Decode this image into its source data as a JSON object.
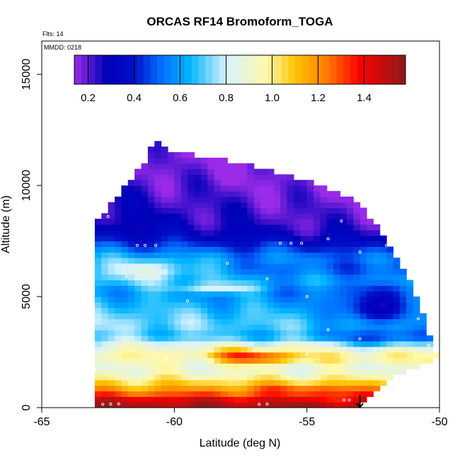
{
  "chart_data": {
    "type": "heatmap",
    "title": "ORCAS RF14 Bromoform_TOGA",
    "annotations": {
      "flights": "Flts: 14",
      "mmdd": "MMDD: 0218"
    },
    "xlabel": "Latitude (deg N)",
    "ylabel": "Altitude (m)",
    "xlim": [
      -65,
      -50
    ],
    "ylim": [
      0,
      16500
    ],
    "x_ticks": [
      -65,
      -60,
      -55,
      -50
    ],
    "x_tick_labels": [
      "-65",
      "-60",
      "-55",
      "-50"
    ],
    "y_ticks": [
      0,
      5000,
      10000,
      15000
    ],
    "y_tick_labels": [
      "0",
      "5000",
      "10000",
      "15000"
    ],
    "colorbar": {
      "range": [
        0.14,
        1.58
      ],
      "ticks": [
        0.2,
        0.4,
        0.6,
        0.8,
        1.0,
        1.2,
        1.4
      ],
      "tick_labels": [
        "0.2",
        "0.4",
        "0.6",
        "0.8",
        "1.0",
        "1.2",
        "1.4"
      ],
      "color_stops": [
        {
          "value": 0.14,
          "color": "#9a2be8"
        },
        {
          "value": 0.28,
          "color": "#0000b8"
        },
        {
          "value": 0.4,
          "color": "#0010c8"
        },
        {
          "value": 0.52,
          "color": "#0070ff"
        },
        {
          "value": 0.64,
          "color": "#00b4ff"
        },
        {
          "value": 0.8,
          "color": "#d6f2ff"
        },
        {
          "value": 0.98,
          "color": "#fff8a8"
        },
        {
          "value": 1.1,
          "color": "#ffc400"
        },
        {
          "value": 1.24,
          "color": "#ff7800"
        },
        {
          "value": 1.38,
          "color": "#ff0000"
        },
        {
          "value": 1.58,
          "color": "#8c1a1a"
        }
      ]
    },
    "field_layers": [
      {
        "alt": 250,
        "value": 1.52
      },
      {
        "alt": 750,
        "value": 1.2
      },
      {
        "alt": 1250,
        "value": 1.02
      },
      {
        "alt": 1750,
        "value": 0.86
      },
      {
        "alt": 2250,
        "value": 1.0
      },
      {
        "alt": 2750,
        "value": 0.88
      },
      {
        "alt": 3250,
        "value": 0.7
      },
      {
        "alt": 3750,
        "value": 0.76
      },
      {
        "alt": 4250,
        "value": 0.72
      },
      {
        "alt": 4750,
        "value": 0.66
      },
      {
        "alt": 5250,
        "value": 0.6
      },
      {
        "alt": 5750,
        "value": 0.68
      },
      {
        "alt": 6250,
        "value": 0.58
      },
      {
        "alt": 6750,
        "value": 0.62
      },
      {
        "alt": 7250,
        "value": 0.5
      },
      {
        "alt": 7750,
        "value": 0.36
      },
      {
        "alt": 8250,
        "value": 0.3
      },
      {
        "alt": 8750,
        "value": 0.28
      },
      {
        "alt": 9250,
        "value": 0.26
      },
      {
        "alt": 9750,
        "value": 0.24
      },
      {
        "alt": 10250,
        "value": 0.22
      },
      {
        "alt": 10750,
        "value": 0.2
      },
      {
        "alt": 11250,
        "value": 0.19
      },
      {
        "alt": 11750,
        "value": 0.18
      },
      {
        "alt": 12250,
        "value": 0.17
      }
    ],
    "field_extent": {
      "top_envelope": [
        {
          "lat": -62.8,
          "alt": 8500
        },
        {
          "lat": -62.0,
          "alt": 9800
        },
        {
          "lat": -61.0,
          "alt": 11200
        },
        {
          "lat": -60.8,
          "alt": 12200
        },
        {
          "lat": -60.0,
          "alt": 11500
        },
        {
          "lat": -57.5,
          "alt": 11000
        },
        {
          "lat": -55.0,
          "alt": 10200
        },
        {
          "lat": -53.0,
          "alt": 9200
        },
        {
          "lat": -52.0,
          "alt": 7500
        },
        {
          "lat": -51.0,
          "alt": 5500
        },
        {
          "lat": -50.3,
          "alt": 3000
        },
        {
          "lat": -50.0,
          "alt": 2300
        }
      ],
      "bottom_envelope": [
        {
          "lat": -63.0,
          "alt": 0
        },
        {
          "lat": -53.0,
          "alt": 0
        },
        {
          "lat": -52.0,
          "alt": 1200
        },
        {
          "lat": -51.0,
          "alt": 1800
        },
        {
          "lat": -50.0,
          "alt": 2300
        }
      ]
    },
    "anomalies": [
      {
        "lat": -57.2,
        "alt": 2300,
        "value": 1.38,
        "dlat": 1.6,
        "dalt": 300
      },
      {
        "lat": -55.5,
        "alt": 750,
        "value": 1.3,
        "dlat": 2.0,
        "dalt": 250
      },
      {
        "lat": -54.0,
        "alt": 600,
        "value": 1.36,
        "dlat": 1.2,
        "dalt": 250
      },
      {
        "lat": -61.0,
        "alt": 6200,
        "value": 0.84,
        "dlat": 2.0,
        "dalt": 500
      },
      {
        "lat": -58.5,
        "alt": 5400,
        "value": 0.82,
        "dlat": 1.8,
        "dalt": 250
      },
      {
        "lat": -60.0,
        "alt": 2000,
        "value": 0.92,
        "dlat": 2.0,
        "dalt": 400
      },
      {
        "lat": -52.5,
        "alt": 4500,
        "value": 0.3,
        "dlat": 1.2,
        "dalt": 700
      },
      {
        "lat": -52.2,
        "alt": 3200,
        "value": 0.45,
        "dlat": 1.5,
        "dalt": 400
      }
    ],
    "observations": [
      {
        "lat": -62.7,
        "alt": 150
      },
      {
        "lat": -62.4,
        "alt": 160
      },
      {
        "lat": -62.1,
        "alt": 170
      },
      {
        "lat": -56.8,
        "alt": 150
      },
      {
        "lat": -56.5,
        "alt": 160
      },
      {
        "lat": -53.6,
        "alt": 350
      },
      {
        "lat": -53.4,
        "alt": 340
      },
      {
        "lat": -63.0,
        "alt": 1700
      },
      {
        "lat": -60.3,
        "alt": 2200
      },
      {
        "lat": -57.0,
        "alt": 2600
      },
      {
        "lat": -55.0,
        "alt": 2400
      },
      {
        "lat": -53.0,
        "alt": 3100
      },
      {
        "lat": -52.3,
        "alt": 2100
      },
      {
        "lat": -61.4,
        "alt": 7300
      },
      {
        "lat": -61.1,
        "alt": 7300
      },
      {
        "lat": -60.7,
        "alt": 7300
      },
      {
        "lat": -56.0,
        "alt": 7400
      },
      {
        "lat": -55.6,
        "alt": 7400
      },
      {
        "lat": -55.2,
        "alt": 7400
      },
      {
        "lat": -54.2,
        "alt": 7600
      },
      {
        "lat": -53.0,
        "alt": 7000
      },
      {
        "lat": -52.0,
        "alt": 7300
      },
      {
        "lat": -51.7,
        "alt": 9100
      },
      {
        "lat": -52.6,
        "alt": 9400
      },
      {
        "lat": -53.7,
        "alt": 8400
      },
      {
        "lat": -54.5,
        "alt": 10200
      },
      {
        "lat": -60.8,
        "alt": 12100
      },
      {
        "lat": -62.5,
        "alt": 8600
      },
      {
        "lat": -50.8,
        "alt": 4000
      },
      {
        "lat": -50.4,
        "alt": 2800
      },
      {
        "lat": -56.5,
        "alt": 5800
      },
      {
        "lat": -59.5,
        "alt": 4800
      },
      {
        "lat": -61.8,
        "alt": 5900
      },
      {
        "lat": -58.0,
        "alt": 6500
      },
      {
        "lat": -55.0,
        "alt": 5000
      },
      {
        "lat": -54.2,
        "alt": 3500
      }
    ],
    "marker": {
      "lat": -53.0,
      "alt": 0,
      "symbol": "arrow-down"
    }
  }
}
